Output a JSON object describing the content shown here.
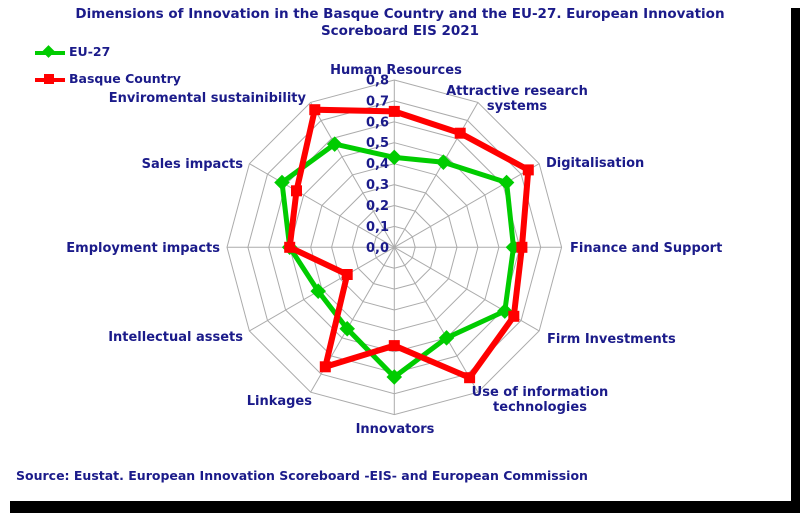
{
  "title_line1": "Dimensions of Innovation in the Basque Country and the EU-27. European Innovation",
  "title_line2": "Scoreboard EIS 2021",
  "source": "Source: Eustat. European Innovation Scoreboard -EIS- and European Commission",
  "colors": {
    "text_navy": "#1b1b8a",
    "grid_gray": "#ababab",
    "eu27_green": "#00CC00",
    "basque_red": "#FF0000",
    "frame_black": "#000000"
  },
  "chart_data": {
    "type": "radar",
    "title": "Dimensions of Innovation in the Basque Country and the EU-27. European Innovation Scoreboard EIS 2021",
    "categories": [
      "Human Resources",
      "Attractive research systems",
      "Digitalisation",
      "Finance and Support",
      "Firm Investments",
      "Use of information technologies",
      "Innovators",
      "Linkages",
      "Intellectual assets",
      "Employment impacts",
      "Sales impacts",
      "Enviromental sustainibility"
    ],
    "series": [
      {
        "name": "EU-27",
        "color": "#00CC00",
        "marker": "diamond",
        "values": [
          0.43,
          0.47,
          0.62,
          0.57,
          0.61,
          0.5,
          0.62,
          0.45,
          0.42,
          0.5,
          0.62,
          0.57
        ]
      },
      {
        "name": "Basque Country",
        "color": "#FF0000",
        "marker": "square",
        "values": [
          0.65,
          0.63,
          0.74,
          0.61,
          0.66,
          0.72,
          0.47,
          0.66,
          0.26,
          0.5,
          0.54,
          0.76
        ]
      }
    ],
    "rmin": 0.0,
    "rmax": 0.8,
    "ring_step": 0.1,
    "ring_labels": [
      "0,0",
      "0,1",
      "0,2",
      "0,3",
      "0,4",
      "0,5",
      "0,6",
      "0,7",
      "0,8"
    ],
    "grid": true,
    "legend_position": "top-left"
  }
}
